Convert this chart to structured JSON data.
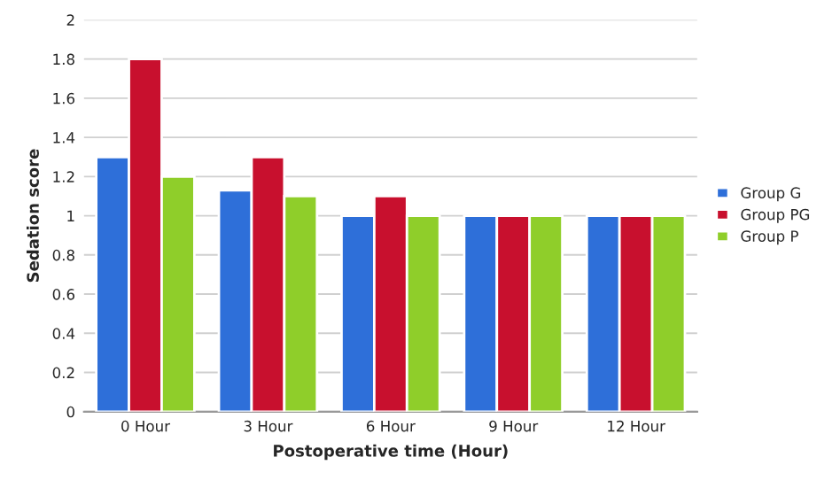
{
  "chart_data": {
    "type": "bar",
    "xlabel": "Postoperative time (Hour)",
    "ylabel": "Sedation score",
    "categories": [
      "0 Hour",
      "3 Hour",
      "6 Hour",
      "9 Hour",
      "12 Hour"
    ],
    "series": [
      {
        "name": "Group G",
        "color": "#2e6fd9",
        "values": [
          1.3,
          1.13,
          1.0,
          1.0,
          1.0
        ]
      },
      {
        "name": "Group PG",
        "color": "#c8102e",
        "values": [
          1.8,
          1.3,
          1.1,
          1.0,
          1.0
        ]
      },
      {
        "name": "Group P",
        "color": "#8fce2a",
        "values": [
          1.2,
          1.1,
          1.0,
          1.0,
          1.0
        ]
      }
    ],
    "ylim": [
      0,
      2
    ],
    "yticks": [
      0,
      0.2,
      0.4,
      0.6,
      0.8,
      1,
      1.2,
      1.4,
      1.6,
      1.8,
      2
    ],
    "grid": "y",
    "legend": "right"
  }
}
